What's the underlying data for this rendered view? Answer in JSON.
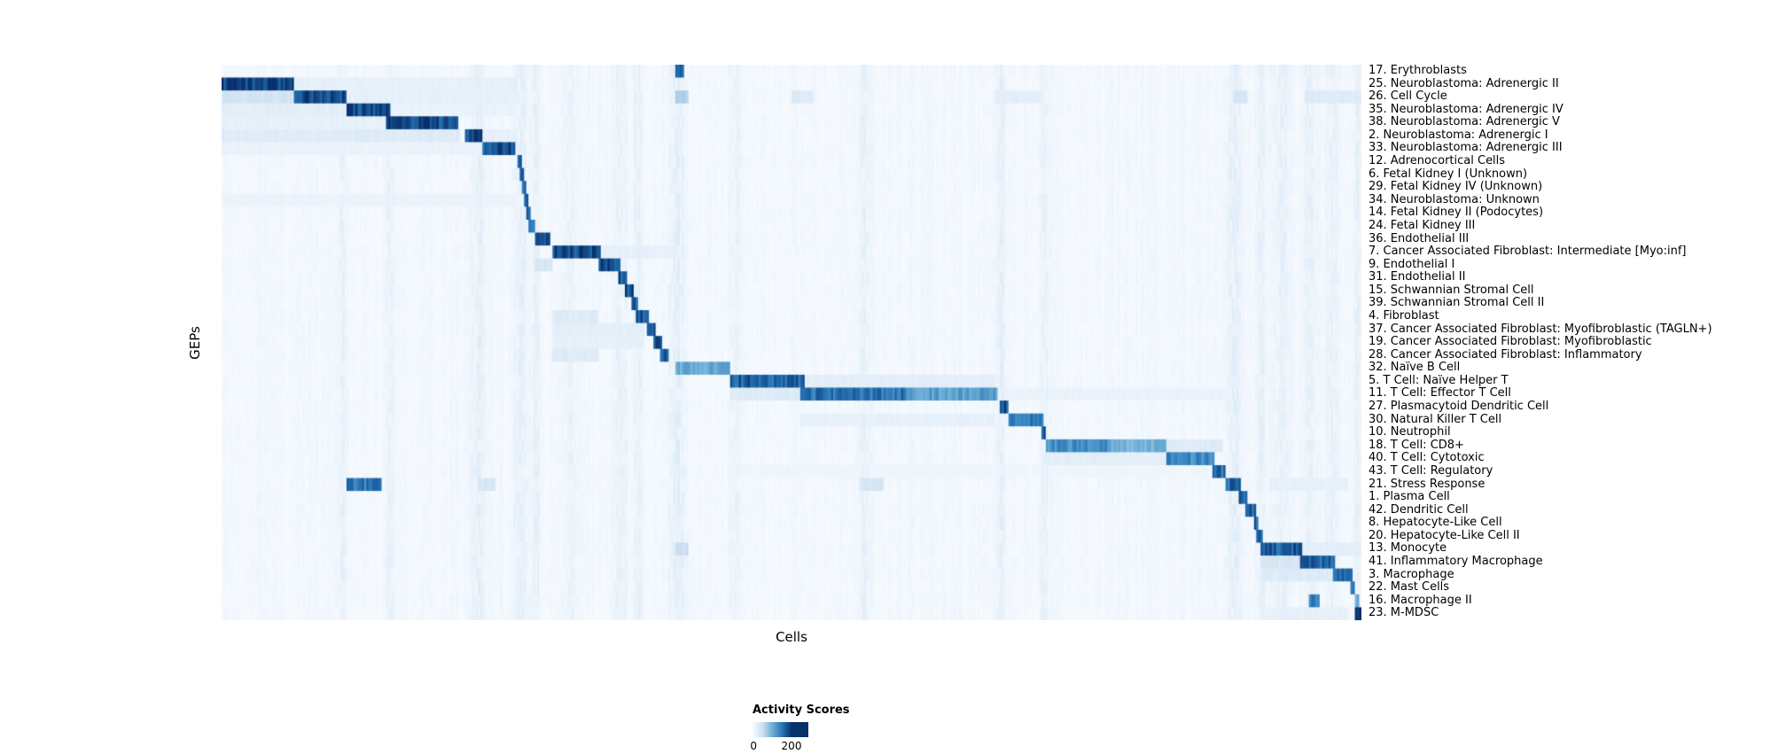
{
  "figure": {
    "background": "#ffffff"
  },
  "chart_data": {
    "type": "heatmap",
    "title": "",
    "xlabel": "Cells",
    "ylabel": "GEPs",
    "legend": {
      "title": "Activity Scores",
      "min_label": "0",
      "max_label": "200",
      "vmin": 0,
      "vmax": 200
    },
    "colormap": {
      "name": "Blues",
      "stops": [
        [
          0.0,
          "#f7fbff"
        ],
        [
          0.25,
          "#cde0f1"
        ],
        [
          0.5,
          "#6fb0d7"
        ],
        [
          0.75,
          "#2676b8"
        ],
        [
          1.0,
          "#08306b"
        ]
      ]
    },
    "n_columns": 520,
    "background": {
      "base": 0.012,
      "noise": 0.03,
      "streaks": [
        {
          "x": 0.105,
          "w": 0.004,
          "s": 0.05
        },
        {
          "x": 0.148,
          "w": 0.004,
          "s": 0.05
        },
        {
          "x": 0.225,
          "w": 0.006,
          "s": 0.07
        },
        {
          "x": 0.262,
          "w": 0.005,
          "s": 0.08
        },
        {
          "x": 0.275,
          "w": 0.004,
          "s": 0.06
        },
        {
          "x": 0.305,
          "w": 0.004,
          "s": 0.05
        },
        {
          "x": 0.35,
          "w": 0.005,
          "s": 0.06
        },
        {
          "x": 0.365,
          "w": 0.004,
          "s": 0.05
        },
        {
          "x": 0.4,
          "w": 0.006,
          "s": 0.08
        },
        {
          "x": 0.452,
          "w": 0.005,
          "s": 0.05
        },
        {
          "x": 0.565,
          "w": 0.006,
          "s": 0.05
        },
        {
          "x": 0.685,
          "w": 0.004,
          "s": 0.06
        },
        {
          "x": 0.722,
          "w": 0.004,
          "s": 0.06
        },
        {
          "x": 0.89,
          "w": 0.006,
          "s": 0.07
        },
        {
          "x": 0.913,
          "w": 0.004,
          "s": 0.06
        },
        {
          "x": 0.932,
          "w": 0.006,
          "s": 0.06
        },
        {
          "x": 0.955,
          "w": 0.005,
          "s": 0.06
        },
        {
          "x": 0.975,
          "w": 0.005,
          "s": 0.06
        },
        {
          "x": 0.997,
          "w": 0.003,
          "s": 0.06
        }
      ]
    },
    "rows": [
      {
        "label": "17. Erythroblasts",
        "blocks": [
          {
            "s": 0.398,
            "e": 0.406,
            "v": 0.9
          }
        ]
      },
      {
        "label": "25. Neuroblastoma: Adrenergic II",
        "blocks": [
          {
            "s": 0.0,
            "e": 0.063,
            "v": 0.97
          },
          {
            "s": 0.063,
            "e": 0.26,
            "v": 0.1
          }
        ]
      },
      {
        "label": "26. Cell Cycle",
        "blocks": [
          {
            "s": 0.063,
            "e": 0.108,
            "v": 0.95
          },
          {
            "s": 0.0,
            "e": 0.063,
            "v": 0.22
          },
          {
            "s": 0.108,
            "e": 0.26,
            "v": 0.1
          },
          {
            "s": 0.398,
            "e": 0.41,
            "v": 0.35
          },
          {
            "s": 0.5,
            "e": 0.52,
            "v": 0.15
          },
          {
            "s": 0.68,
            "e": 0.72,
            "v": 0.12
          },
          {
            "s": 0.89,
            "e": 0.9,
            "v": 0.2
          },
          {
            "s": 0.95,
            "e": 1.0,
            "v": 0.15
          }
        ]
      },
      {
        "label": "35. Neuroblastoma: Adrenergic IV",
        "blocks": [
          {
            "s": 0.108,
            "e": 0.148,
            "v": 0.95
          },
          {
            "s": 0.0,
            "e": 0.108,
            "v": 0.12
          },
          {
            "s": 0.148,
            "e": 0.26,
            "v": 0.08
          }
        ]
      },
      {
        "label": "38. Neuroblastoma: Adrenergic V",
        "blocks": [
          {
            "s": 0.144,
            "e": 0.208,
            "v": 0.93
          },
          {
            "s": 0.0,
            "e": 0.144,
            "v": 0.1
          }
        ]
      },
      {
        "label": "2. Neuroblastoma: Adrenergic I",
        "blocks": [
          {
            "s": 0.212,
            "e": 0.228,
            "v": 0.95
          },
          {
            "s": 0.0,
            "e": 0.21,
            "v": 0.15
          },
          {
            "s": 0.229,
            "e": 0.26,
            "v": 0.1
          }
        ]
      },
      {
        "label": "33. Neuroblastoma: Adrenergic III",
        "blocks": [
          {
            "s": 0.228,
            "e": 0.258,
            "v": 0.93
          },
          {
            "s": 0.0,
            "e": 0.228,
            "v": 0.08
          }
        ]
      },
      {
        "label": "12. Adrenocortical Cells",
        "blocks": [
          {
            "s": 0.259,
            "e": 0.263,
            "v": 0.9
          }
        ]
      },
      {
        "label": "6. Fetal Kidney I (Unknown)",
        "blocks": [
          {
            "s": 0.261,
            "e": 0.265,
            "v": 0.85
          }
        ]
      },
      {
        "label": "29. Fetal Kidney IV (Unknown)",
        "blocks": [
          {
            "s": 0.263,
            "e": 0.267,
            "v": 0.85
          }
        ]
      },
      {
        "label": "34. Neuroblastoma: Unknown",
        "blocks": [
          {
            "s": 0.265,
            "e": 0.269,
            "v": 0.8
          },
          {
            "s": 0.0,
            "e": 0.26,
            "v": 0.07
          }
        ]
      },
      {
        "label": "14. Fetal Kidney II (Podocytes)",
        "blocks": [
          {
            "s": 0.267,
            "e": 0.271,
            "v": 0.85
          }
        ]
      },
      {
        "label": "24. Fetal Kidney III",
        "blocks": [
          {
            "s": 0.269,
            "e": 0.274,
            "v": 0.85
          }
        ]
      },
      {
        "label": "36. Endothelial III",
        "blocks": [
          {
            "s": 0.274,
            "e": 0.289,
            "v": 0.9
          }
        ]
      },
      {
        "label": "7. Cancer Associated Fibroblast: Intermediate [Myo:inf]",
        "blocks": [
          {
            "s": 0.29,
            "e": 0.332,
            "v": 0.95
          },
          {
            "s": 0.332,
            "e": 0.4,
            "v": 0.1
          }
        ]
      },
      {
        "label": "9. Endothelial I",
        "blocks": [
          {
            "s": 0.331,
            "e": 0.35,
            "v": 0.92
          },
          {
            "s": 0.274,
            "e": 0.29,
            "v": 0.2
          }
        ]
      },
      {
        "label": "31. Endothelial II",
        "blocks": [
          {
            "s": 0.348,
            "e": 0.356,
            "v": 0.9
          }
        ]
      },
      {
        "label": "15. Schwannian Stromal Cell",
        "blocks": [
          {
            "s": 0.354,
            "e": 0.362,
            "v": 0.9
          }
        ]
      },
      {
        "label": "39. Schwannian Stromal Cell II",
        "blocks": [
          {
            "s": 0.36,
            "e": 0.366,
            "v": 0.85
          }
        ]
      },
      {
        "label": "4. Fibroblast",
        "blocks": [
          {
            "s": 0.364,
            "e": 0.374,
            "v": 0.92
          },
          {
            "s": 0.29,
            "e": 0.33,
            "v": 0.15
          }
        ]
      },
      {
        "label": "37. Cancer Associated Fibroblast: Myofibroblastic (TAGLN+)",
        "blocks": [
          {
            "s": 0.373,
            "e": 0.381,
            "v": 0.92
          },
          {
            "s": 0.29,
            "e": 0.37,
            "v": 0.12
          }
        ]
      },
      {
        "label": "19. Cancer Associated Fibroblast: Myofibroblastic",
        "blocks": [
          {
            "s": 0.379,
            "e": 0.386,
            "v": 0.9
          },
          {
            "s": 0.29,
            "e": 0.37,
            "v": 0.1
          }
        ]
      },
      {
        "label": "28. Cancer Associated Fibroblast: Inflammatory",
        "blocks": [
          {
            "s": 0.384,
            "e": 0.392,
            "v": 0.9
          },
          {
            "s": 0.29,
            "e": 0.33,
            "v": 0.15
          }
        ]
      },
      {
        "label": "32. Naïve B Cell",
        "blocks": [
          {
            "s": 0.398,
            "e": 0.447,
            "v": 0.55
          }
        ]
      },
      {
        "label": "5. T Cell: Naïve Helper T",
        "blocks": [
          {
            "s": 0.447,
            "e": 0.512,
            "v": 0.85
          },
          {
            "s": 0.512,
            "e": 0.68,
            "v": 0.12
          }
        ]
      },
      {
        "label": "11. T Cell: Effector T Cell",
        "blocks": [
          {
            "s": 0.507,
            "e": 0.6,
            "v": 0.78
          },
          {
            "s": 0.6,
            "e": 0.682,
            "v": 0.6
          },
          {
            "s": 0.447,
            "e": 0.507,
            "v": 0.15
          },
          {
            "s": 0.682,
            "e": 0.88,
            "v": 0.08
          }
        ]
      },
      {
        "label": "27. Plasmacytoid Dendritic Cell",
        "blocks": [
          {
            "s": 0.684,
            "e": 0.69,
            "v": 0.9
          }
        ]
      },
      {
        "label": "30. Natural Killer T Cell",
        "blocks": [
          {
            "s": 0.691,
            "e": 0.721,
            "v": 0.75
          },
          {
            "s": 0.507,
            "e": 0.68,
            "v": 0.1
          }
        ]
      },
      {
        "label": "10. Neutrophil",
        "blocks": [
          {
            "s": 0.719,
            "e": 0.724,
            "v": 0.85
          }
        ]
      },
      {
        "label": "18. T Cell: CD8+",
        "blocks": [
          {
            "s": 0.724,
            "e": 0.78,
            "v": 0.65
          },
          {
            "s": 0.78,
            "e": 0.83,
            "v": 0.5
          },
          {
            "s": 0.83,
            "e": 0.88,
            "v": 0.15
          }
        ]
      },
      {
        "label": "40. T Cell: Cytotoxic",
        "blocks": [
          {
            "s": 0.829,
            "e": 0.872,
            "v": 0.7
          },
          {
            "s": 0.724,
            "e": 0.829,
            "v": 0.12
          }
        ]
      },
      {
        "label": "43. T Cell: Regulatory",
        "blocks": [
          {
            "s": 0.87,
            "e": 0.882,
            "v": 0.8
          },
          {
            "s": 0.447,
            "e": 0.87,
            "v": 0.05
          }
        ]
      },
      {
        "label": "21. Stress Response",
        "blocks": [
          {
            "s": 0.881,
            "e": 0.895,
            "v": 0.85
          },
          {
            "s": 0.108,
            "e": 0.14,
            "v": 0.75
          },
          {
            "s": 0.225,
            "e": 0.24,
            "v": 0.2
          },
          {
            "s": 0.56,
            "e": 0.58,
            "v": 0.2
          },
          {
            "s": 0.92,
            "e": 0.99,
            "v": 0.1
          }
        ]
      },
      {
        "label": "1. Plasma Cell",
        "blocks": [
          {
            "s": 0.894,
            "e": 0.9,
            "v": 0.9
          }
        ]
      },
      {
        "label": "42. Dendritic Cell",
        "blocks": [
          {
            "s": 0.899,
            "e": 0.908,
            "v": 0.85
          }
        ]
      },
      {
        "label": "8. Hepatocyte-Like Cell",
        "blocks": [
          {
            "s": 0.906,
            "e": 0.911,
            "v": 0.85
          }
        ]
      },
      {
        "label": "20. Hepatocyte-Like Cell II",
        "blocks": [
          {
            "s": 0.909,
            "e": 0.914,
            "v": 0.8
          }
        ]
      },
      {
        "label": "13. Monocyte",
        "blocks": [
          {
            "s": 0.913,
            "e": 0.949,
            "v": 0.88
          },
          {
            "s": 0.398,
            "e": 0.41,
            "v": 0.25
          },
          {
            "s": 0.949,
            "e": 1.0,
            "v": 0.12
          }
        ]
      },
      {
        "label": "41. Inflammatory Macrophage",
        "blocks": [
          {
            "s": 0.947,
            "e": 0.978,
            "v": 0.85
          },
          {
            "s": 0.913,
            "e": 0.947,
            "v": 0.2
          }
        ]
      },
      {
        "label": "3. Macrophage",
        "blocks": [
          {
            "s": 0.976,
            "e": 0.993,
            "v": 0.85
          },
          {
            "s": 0.913,
            "e": 0.976,
            "v": 0.15
          }
        ]
      },
      {
        "label": "22. Mast Cells",
        "blocks": [
          {
            "s": 0.992,
            "e": 0.996,
            "v": 0.85
          }
        ]
      },
      {
        "label": "16. Macrophage II",
        "blocks": [
          {
            "s": 0.955,
            "e": 0.965,
            "v": 0.7
          },
          {
            "s": 0.996,
            "e": 0.999,
            "v": 0.5
          }
        ]
      },
      {
        "label": "23. M-MDSC",
        "blocks": [
          {
            "s": 0.996,
            "e": 1.0,
            "v": 0.95
          },
          {
            "s": 0.913,
            "e": 0.99,
            "v": 0.1
          }
        ]
      }
    ]
  }
}
